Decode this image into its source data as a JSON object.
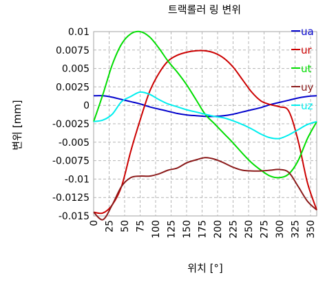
{
  "chart_data": {
    "type": "line",
    "title": "트랙롤러 링 변위",
    "xlabel": "위치 [°]",
    "ylabel": "변위 [mm]",
    "xlim": [
      0,
      360
    ],
    "ylim": [
      -0.015,
      0.01
    ],
    "grid": true,
    "legend_position": "top-right",
    "x_ticks": [
      "0",
      "25",
      "50",
      "75",
      "100",
      "125",
      "150",
      "175",
      "200",
      "225",
      "250",
      "275",
      "300",
      "325",
      "350"
    ],
    "y_ticks": [
      "0.01",
      "0.0075",
      "0.005",
      "0.0025",
      "0",
      "-0.0025",
      "-0.005",
      "-0.0075",
      "-0.01",
      "-0.0125",
      "-0.015"
    ],
    "x": [
      0,
      15,
      30,
      45,
      60,
      75,
      90,
      105,
      120,
      135,
      150,
      165,
      180,
      195,
      210,
      225,
      240,
      255,
      270,
      285,
      300,
      315,
      330,
      345,
      360
    ],
    "series": [
      {
        "name": "ua",
        "color": "#0000cc",
        "values": [
          0.0013,
          0.0013,
          0.0011,
          0.0008,
          0.0005,
          0.0002,
          -0.0002,
          -0.0005,
          -0.0008,
          -0.0011,
          -0.0013,
          -0.0014,
          -0.0015,
          -0.0015,
          -0.0014,
          -0.0012,
          -0.0009,
          -0.0006,
          -0.0003,
          0.0001,
          0.0004,
          0.0007,
          0.001,
          0.0012,
          0.0013
        ]
      },
      {
        "name": "ur",
        "color": "#cc0000",
        "values": [
          -0.0145,
          -0.0146,
          -0.0135,
          -0.011,
          -0.0062,
          -0.002,
          0.0018,
          0.0043,
          0.006,
          0.0068,
          0.0072,
          0.0074,
          0.0074,
          0.0071,
          0.0064,
          0.0052,
          0.0035,
          0.0018,
          0.0006,
          0.0001,
          -0.0002,
          -0.0008,
          -0.0048,
          -0.0105,
          -0.0142
        ]
      },
      {
        "name": "ut",
        "color": "#00dd00",
        "values": [
          -0.0022,
          0.0015,
          0.0055,
          0.0083,
          0.0097,
          0.01,
          0.0093,
          0.0078,
          0.006,
          0.0045,
          0.0028,
          0.0008,
          -0.0012,
          -0.0025,
          -0.0038,
          -0.0051,
          -0.0065,
          -0.0078,
          -0.0088,
          -0.0096,
          -0.0098,
          -0.0093,
          -0.0075,
          -0.0045,
          -0.0022
        ]
      },
      {
        "name": "uy",
        "color": "#8b1a1a",
        "values": [
          -0.0145,
          -0.0155,
          -0.0135,
          -0.011,
          -0.0098,
          -0.0096,
          -0.0096,
          -0.0093,
          -0.0088,
          -0.0085,
          -0.0078,
          -0.0074,
          -0.0071,
          -0.0073,
          -0.0078,
          -0.0084,
          -0.0088,
          -0.0089,
          -0.0089,
          -0.0088,
          -0.0087,
          -0.0091,
          -0.011,
          -0.013,
          -0.0142
        ]
      },
      {
        "name": "uz",
        "color": "#00eeee",
        "values": [
          -0.0022,
          -0.002,
          -0.0012,
          0.0005,
          0.0012,
          0.0018,
          0.0015,
          0.0008,
          0.0002,
          -0.0002,
          -0.0006,
          -0.0009,
          -0.0012,
          -0.0015,
          -0.0017,
          -0.0021,
          -0.0026,
          -0.0032,
          -0.0039,
          -0.0044,
          -0.0045,
          -0.004,
          -0.0033,
          -0.0026,
          -0.0022
        ]
      }
    ]
  }
}
